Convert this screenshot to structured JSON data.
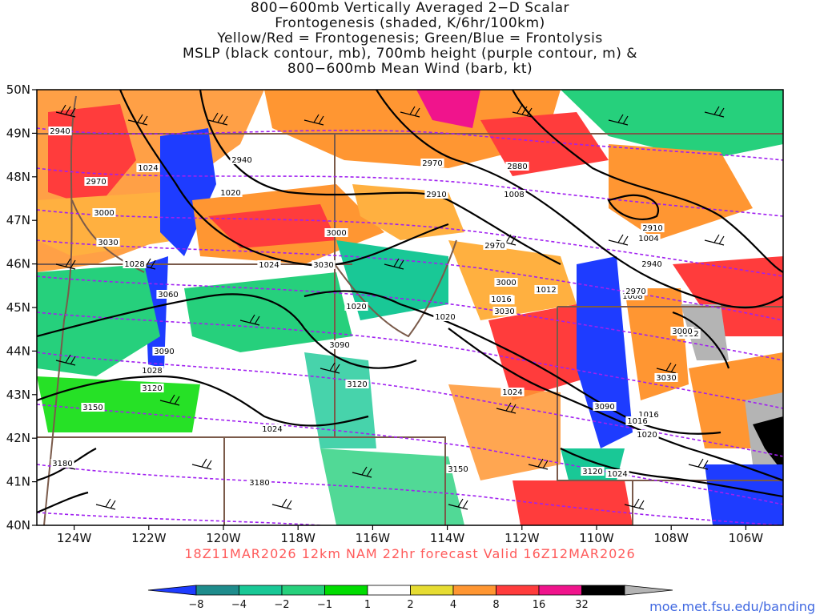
{
  "title_lines": [
    "800−600mb Vertically Averaged 2−D Scalar",
    "Frontogenesis (shaded, K/6hr/100km)",
    "Yellow/Red = Frontogenesis;  Green/Blue = Frontolysis",
    "MSLP (black contour, mb), 700mb height (purple contour, m) &",
    "800−600mb Mean Wind (barb, kt)"
  ],
  "valid_line": "18Z11MAR2026 12km NAM 22hr forecast Valid 16Z12MAR2026",
  "credit": "moe.met.fsu.edu/banding",
  "lat_labels": [
    "50N",
    "49N",
    "48N",
    "47N",
    "46N",
    "45N",
    "44N",
    "43N",
    "42N",
    "41N",
    "40N"
  ],
  "lon_labels": [
    "124W",
    "122W",
    "120W",
    "118W",
    "116W",
    "114W",
    "112W",
    "110W",
    "108W",
    "106W"
  ],
  "colorbar": {
    "ticks": [
      "−8",
      "−4",
      "−2",
      "−1",
      "1",
      "2",
      "4",
      "8",
      "16",
      "32"
    ],
    "colors": [
      "#1e3cff",
      "#1e8c8c",
      "#19c896",
      "#26d07c",
      "#00dc00",
      "#ffffff",
      "#e6dc32",
      "#ff9632",
      "#ff3c3c",
      "#f0148c",
      "#000000",
      "#b4b4b4"
    ]
  },
  "colors": {
    "frontolysis_strong": "#1e3cff",
    "frontolysis_mod": "#19c896",
    "frontolysis_weak": "#00dc00",
    "frontogenesis_weak": "#e6dc32",
    "frontogenesis_mod": "#ff9632",
    "frontogenesis_strong": "#ff3c3c",
    "frontogenesis_vstrong": "#f0148c",
    "mslp_contour": "#000000",
    "height_contour": "#a020f0",
    "border": "#7a5a4a"
  },
  "mslp_labels": [
    "1024",
    "1020",
    "1016",
    "1008",
    "1004",
    "1012",
    "1028",
    "1024",
    "1020",
    "1016",
    "1012",
    "1020",
    "1016",
    "1024",
    "1028",
    "1024",
    "1008",
    "1020",
    "1016",
    "1012",
    "1024",
    "1020"
  ],
  "height_labels": [
    "2940",
    "2970",
    "3000",
    "3030",
    "3060",
    "3090",
    "3120",
    "3150",
    "3180",
    "2940",
    "2970",
    "3000",
    "3030",
    "2910",
    "2880",
    "2970",
    "3000",
    "3030",
    "3090",
    "3120",
    "3150",
    "2910",
    "2940",
    "2970",
    "3000",
    "3030",
    "3090",
    "3120",
    "3180"
  ]
}
